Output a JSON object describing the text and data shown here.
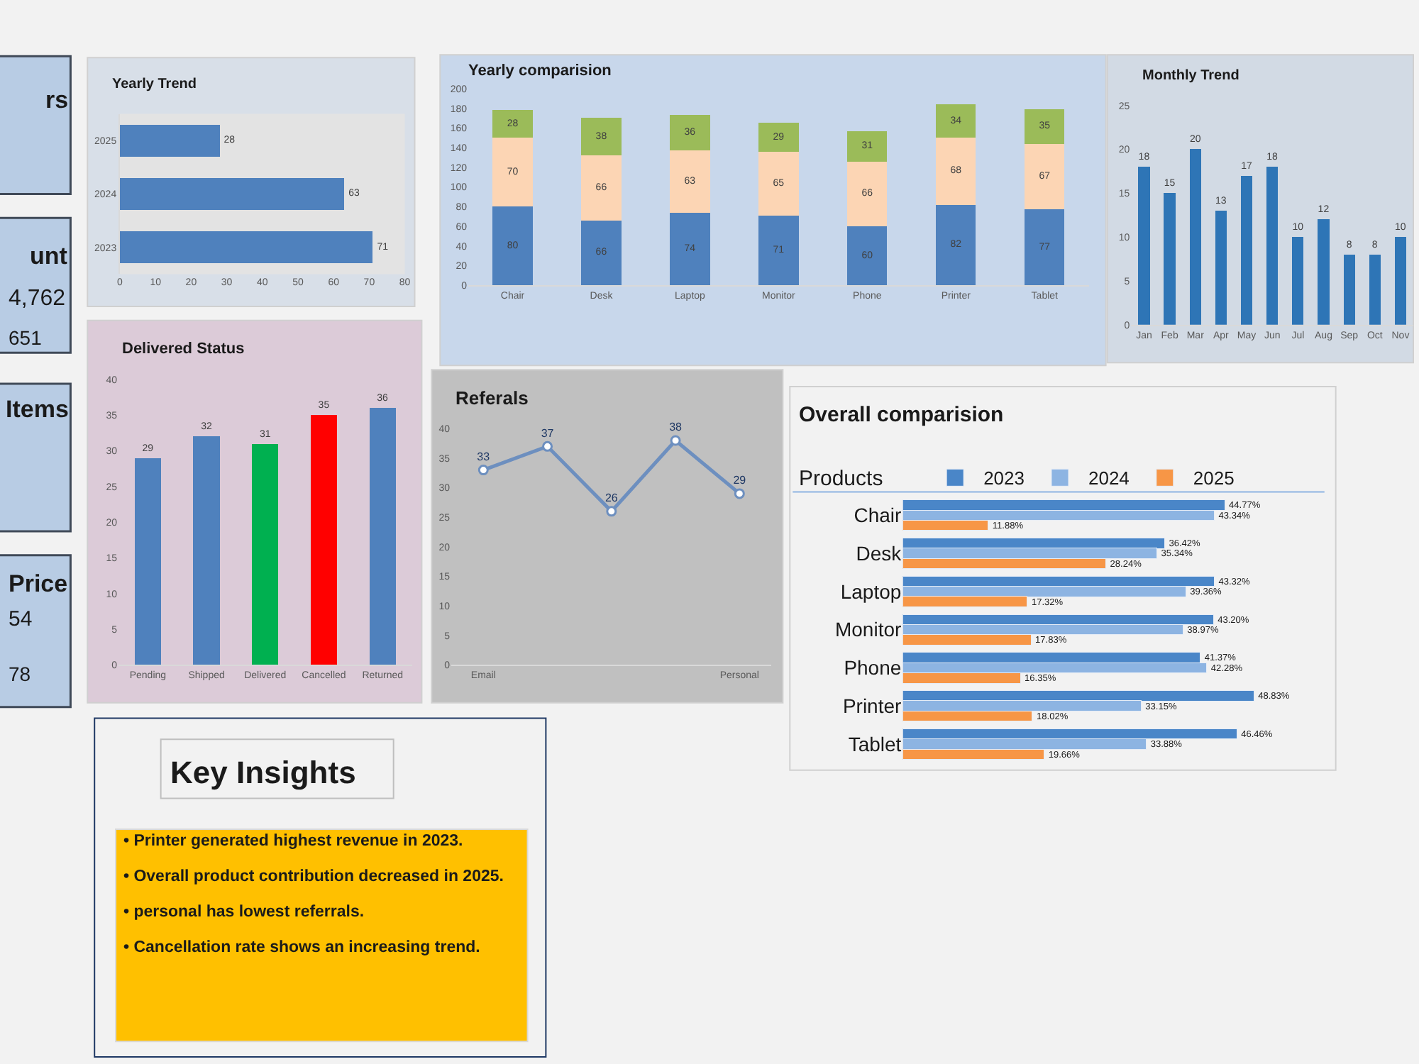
{
  "chart_data": [
    {
      "type": "other",
      "annotations": [
        "rs",
        "unt",
        "4,762",
        "651",
        "Items",
        "Price",
        "54",
        "78"
      ]
    },
    {
      "type": "bar",
      "title": "Yearly Trend",
      "orientation": "horizontal",
      "categories": [
        "2025",
        "2024",
        "2023"
      ],
      "values": [
        28,
        63,
        71
      ],
      "color": "#4f81bd",
      "data_labels": true,
      "xlim": [
        0,
        80
      ],
      "xticks": [
        0,
        10,
        20,
        30,
        40,
        50,
        60,
        70,
        80
      ]
    },
    {
      "type": "bar",
      "title": "Yearly comparision",
      "stacked": true,
      "categories": [
        "Chair",
        "Desk",
        "Laptop",
        "Monitor",
        "Phone",
        "Printer",
        "Tablet"
      ],
      "series": [
        {
          "color": "#4f81bd",
          "values": [
            80,
            66,
            74,
            71,
            60,
            82,
            77
          ]
        },
        {
          "color": "#fcd5b4",
          "values": [
            70,
            66,
            63,
            65,
            66,
            68,
            67
          ]
        },
        {
          "color": "#9bbb59",
          "values": [
            28,
            38,
            36,
            29,
            31,
            34,
            35
          ]
        }
      ],
      "data_labels": true,
      "ylim": [
        0,
        200
      ],
      "yticks": [
        0,
        20,
        40,
        60,
        80,
        100,
        120,
        140,
        160,
        180,
        200
      ]
    },
    {
      "type": "bar",
      "title": "Monthly Trend",
      "categories": [
        "Jan",
        "Feb",
        "Mar",
        "Apr",
        "May",
        "Jun",
        "Jul",
        "Aug",
        "Sep",
        "Oct",
        "Nov"
      ],
      "values": [
        18,
        15,
        20,
        13,
        17,
        18,
        10,
        12,
        8,
        8,
        10
      ],
      "color": "#2e75b6",
      "data_labels": true,
      "ylim": [
        0,
        25
      ],
      "yticks": [
        0,
        5,
        10,
        15,
        20,
        25
      ]
    },
    {
      "type": "bar",
      "title": "Delivered Status",
      "categories": [
        "Pending",
        "Shipped",
        "Delivered",
        "Cancelled",
        "Returned"
      ],
      "values": [
        29,
        32,
        31,
        35,
        36
      ],
      "colors": [
        "#4f81bd",
        "#4f81bd",
        "#00b050",
        "#ff0000",
        "#4f81bd"
      ],
      "data_labels": true,
      "ylim": [
        0,
        40
      ],
      "yticks": [
        0,
        5,
        10,
        15,
        20,
        25,
        30,
        35,
        40
      ]
    },
    {
      "type": "line",
      "title": "Referals",
      "categories": [
        "Email",
        null,
        null,
        null,
        "Personal"
      ],
      "values": [
        33,
        37,
        26,
        38,
        29
      ],
      "color": "#6d8fbf",
      "marker": "circle",
      "data_labels": true,
      "ylim": [
        0,
        40
      ],
      "yticks": [
        0,
        5,
        10,
        15,
        20,
        25,
        30,
        35,
        40
      ]
    },
    {
      "type": "bar",
      "title": "Overall comparision",
      "ylabel": "Products",
      "orientation": "horizontal",
      "tick_labels": "y",
      "legend": "top",
      "categories": [
        "Chair",
        "Desk",
        "Laptop",
        "Monitor",
        "Phone",
        "Printer",
        "Tablet"
      ],
      "series": [
        {
          "name": "2023",
          "color": "#4a86c8",
          "values": [
            44.77,
            36.42,
            43.32,
            43.2,
            41.37,
            48.83,
            46.46
          ],
          "value_labels": [
            "44.77%",
            "36.42%",
            "43.32%",
            "43.20%",
            "41.37%",
            "48.83%",
            "46.46%"
          ]
        },
        {
          "name": "2024",
          "color": "#8db4e2",
          "values": [
            43.34,
            35.34,
            39.36,
            38.97,
            42.28,
            33.15,
            33.88
          ],
          "value_labels": [
            "43.34%",
            "35.34%",
            "39.36%",
            "38.97%",
            "42.28%",
            "33.15%",
            "33.88%"
          ]
        },
        {
          "name": "2025",
          "color": "#f79646",
          "values": [
            11.88,
            28.24,
            17.32,
            17.83,
            16.35,
            18.02,
            19.66
          ],
          "value_labels": [
            "11.88%",
            "28.24%",
            "17.32%",
            "17.83%",
            "16.35%",
            "18.02%",
            "19.66%"
          ]
        }
      ]
    },
    {
      "type": "other",
      "title": "Key Insights",
      "annotations": [
        "• Printer generated highest revenue in 2023.",
        "• Overall product contribution decreased in 2025.",
        "• personal has lowest referrals.",
        "• Cancellation rate shows an increasing trend."
      ]
    }
  ]
}
